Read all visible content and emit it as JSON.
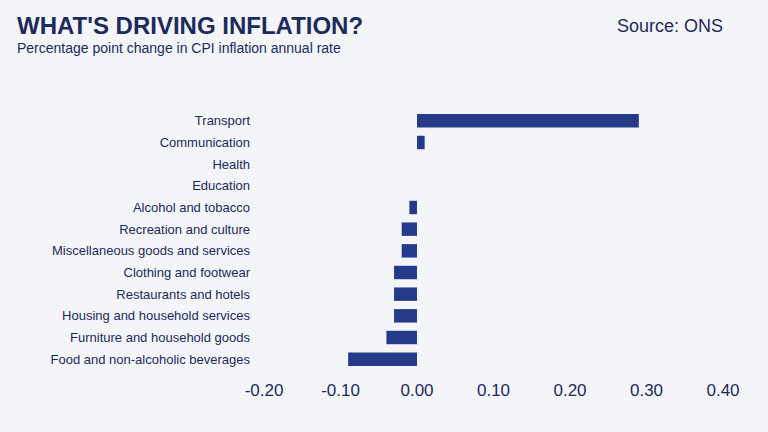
{
  "chart_data": {
    "type": "bar",
    "orientation": "horizontal",
    "title": "WHAT'S DRIVING INFLATION?",
    "subtitle": "Percentage point change in CPI inflation annual rate",
    "source": "Source: ONS",
    "categories": [
      "Transport",
      "Communication",
      "Health",
      "Education",
      "Alcohol and tobacco",
      "Recreation and culture",
      "Miscellaneous goods and services",
      "Clothing and footwear",
      "Restaurants and hotels",
      "Housing and household services",
      "Furniture and household goods",
      "Food and non-alcoholic beverages"
    ],
    "values": [
      0.29,
      0.01,
      0,
      0,
      -0.01,
      -0.02,
      -0.02,
      -0.03,
      -0.03,
      -0.03,
      -0.04,
      -0.09
    ],
    "color": "#263a8a",
    "xlim": [
      -0.2,
      0.4
    ],
    "xticks": [
      {
        "value": -0.2,
        "label": "-0.20"
      },
      {
        "value": -0.1,
        "label": "-0.10"
      },
      {
        "value": 0,
        "label": "0.00"
      },
      {
        "value": 0.1,
        "label": "0.10"
      },
      {
        "value": 0.2,
        "label": "0.20"
      },
      {
        "value": 0.3,
        "label": "0.30"
      },
      {
        "value": 0.4,
        "label": "0.40"
      }
    ],
    "grid": false,
    "data_labels": false
  }
}
